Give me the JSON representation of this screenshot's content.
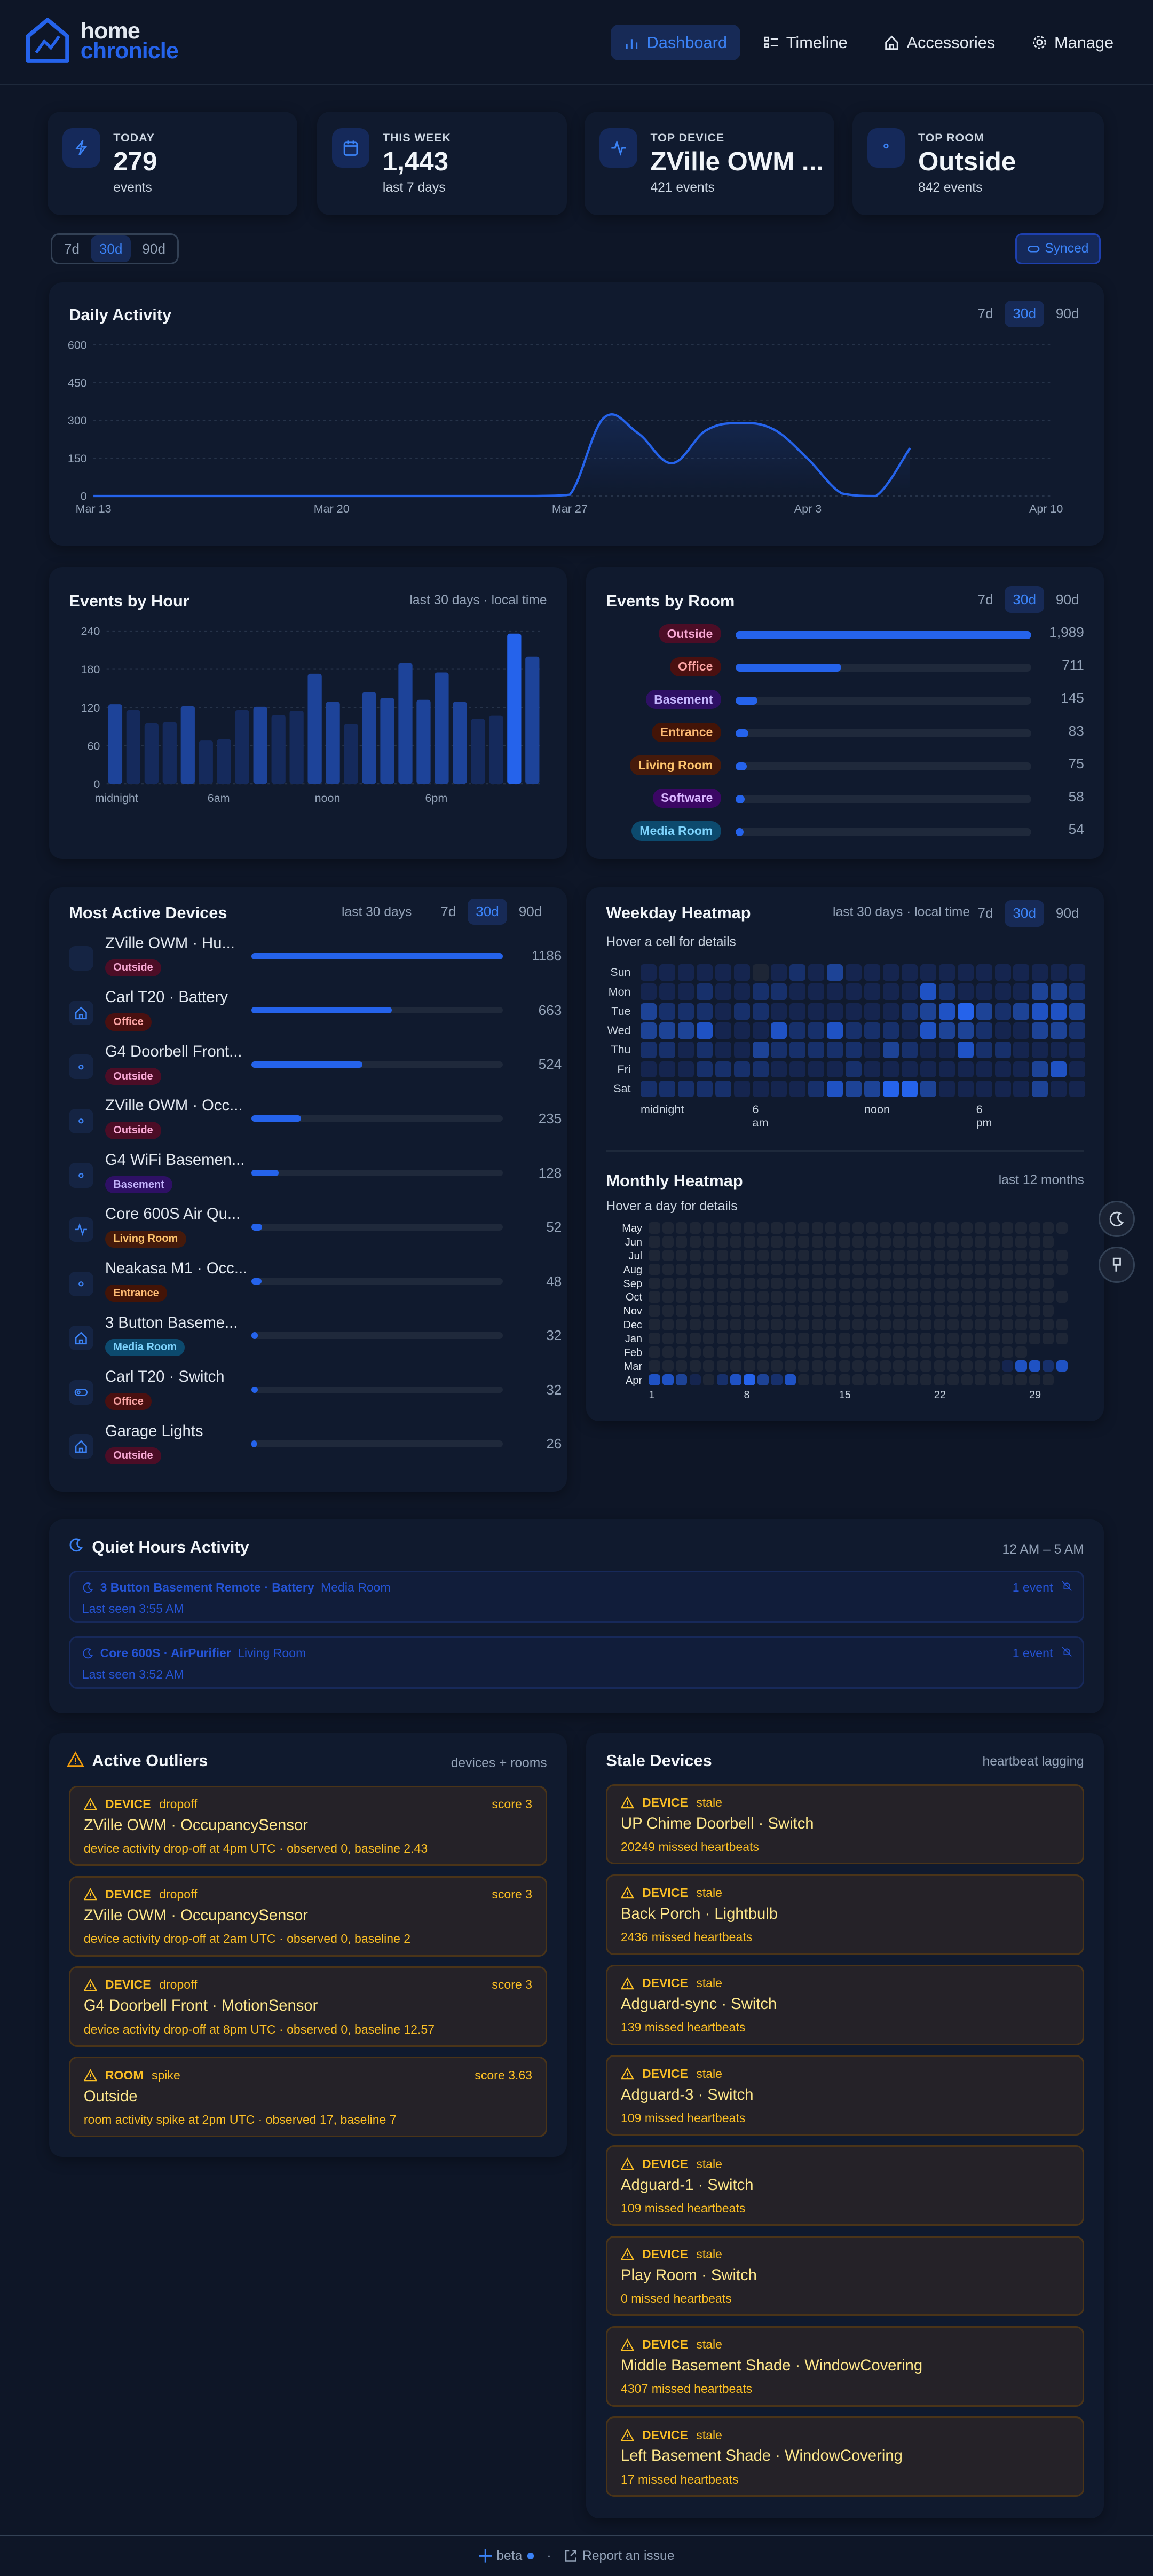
{
  "app": {
    "logo_line1": "home",
    "logo_line2": "chronicle"
  },
  "nav": [
    {
      "label": "Dashboard",
      "icon": "bar-chart-icon",
      "active": true
    },
    {
      "label": "Timeline",
      "icon": "list-icon",
      "active": false
    },
    {
      "label": "Accessories",
      "icon": "home-icon",
      "active": false
    },
    {
      "label": "Manage",
      "icon": "gear-icon",
      "active": false
    }
  ],
  "stats": [
    {
      "label": "TODAY",
      "value": "279",
      "sub": "events",
      "icon": "lightning-icon"
    },
    {
      "label": "THIS WEEK",
      "value": "1,443",
      "sub": "last 7 days",
      "icon": "calendar-icon"
    },
    {
      "label": "TOP DEVICE",
      "value": "ZVille OWM ...",
      "sub": "421 events",
      "icon": "activity-icon"
    },
    {
      "label": "TOP ROOM",
      "value": "Outside",
      "sub": "842 events",
      "icon": "location-pin-icon"
    }
  ],
  "range": {
    "options": [
      "7d",
      "30d",
      "90d"
    ],
    "selected": "30d"
  },
  "sync": {
    "label": "Synced"
  },
  "daily": {
    "title": "Daily Activity",
    "chart_data": {
      "type": "area",
      "x": [
        "Mar 13",
        "Mar 14",
        "Mar 15",
        "Mar 16",
        "Mar 17",
        "Mar 18",
        "Mar 19",
        "Mar 20",
        "Mar 21",
        "Mar 22",
        "Mar 23",
        "Mar 24",
        "Mar 25",
        "Mar 26",
        "Mar 27",
        "Mar 28",
        "Mar 29",
        "Mar 30",
        "Mar 31",
        "Apr 1",
        "Apr 2",
        "Apr 3",
        "Apr 4",
        "Apr 5",
        "Apr 6"
      ],
      "values": [
        0,
        0,
        0,
        0,
        0,
        0,
        0,
        0,
        0,
        0,
        0,
        0,
        0,
        0,
        5,
        310,
        250,
        130,
        260,
        290,
        264,
        147,
        10,
        0,
        190
      ],
      "yticks": [
        "0",
        "150",
        "300",
        "450",
        "600"
      ],
      "ylim": [
        0,
        600
      ],
      "xticks": [
        "Mar 13",
        "Mar 20",
        "Mar 27",
        "Apr 3",
        "Apr 10"
      ],
      "xlim": [
        "Mar 13",
        "Apr 10"
      ],
      "grid": true,
      "color": "#2563eb"
    }
  },
  "hour": {
    "title": "Events by Hour",
    "meta": "last 30 days · local time",
    "chart_data": {
      "type": "bar",
      "categories": [
        "0",
        "1",
        "2",
        "3",
        "4",
        "5",
        "6",
        "7",
        "8",
        "9",
        "10",
        "11",
        "12",
        "13",
        "14",
        "15",
        "16",
        "17",
        "18",
        "19",
        "20",
        "21",
        "22",
        "23"
      ],
      "values": [
        125,
        116,
        95,
        97,
        122,
        68,
        70,
        116,
        121,
        108,
        115,
        173,
        129,
        94,
        144,
        135,
        190,
        132,
        175,
        129,
        102,
        107,
        236,
        200
      ],
      "xticks": [
        "midnight",
        "6am",
        "noon",
        "6pm"
      ],
      "yticks": [
        "0",
        "60",
        "120",
        "180",
        "240"
      ],
      "ylim": [
        0,
        240
      ],
      "grid": true
    }
  },
  "rooms": {
    "title": "Events by Room",
    "items": [
      {
        "name": "Outside",
        "count": 1989,
        "count_label": "1,989",
        "bg": "#4c0d26",
        "fg": "#f9a8d4"
      },
      {
        "name": "Office",
        "count": 711,
        "count_label": "711",
        "bg": "#4a1010",
        "fg": "#fca5a5"
      },
      {
        "name": "Basement",
        "count": 145,
        "count_label": "145",
        "bg": "#2e1065",
        "fg": "#c4b5fd"
      },
      {
        "name": "Entrance",
        "count": 83,
        "count_label": "83",
        "bg": "#431407",
        "fg": "#fdba74"
      },
      {
        "name": "Living Room",
        "count": 75,
        "count_label": "75",
        "bg": "#451a0b",
        "fg": "#fcc36d"
      },
      {
        "name": "Software",
        "count": 58,
        "count_label": "58",
        "bg": "#3b0764",
        "fg": "#d8b4fe"
      },
      {
        "name": "Media Room",
        "count": 54,
        "count_label": "54",
        "bg": "#0c4a6e",
        "fg": "#7dd3fc"
      }
    ]
  },
  "devices": {
    "title": "Most Active Devices",
    "meta": "last 30 days",
    "items": [
      {
        "name": "ZVille OWM · Hu...",
        "room": "Outside",
        "count": 1186,
        "icon": "droplets-icon"
      },
      {
        "name": "Carl T20 · Battery",
        "room": "Office",
        "count": 663,
        "icon": "home-icon"
      },
      {
        "name": "G4 Doorbell Front...",
        "room": "Outside",
        "count": 524,
        "icon": "eye-icon"
      },
      {
        "name": "ZVille OWM · Occ...",
        "room": "Outside",
        "count": 235,
        "icon": "eye-icon"
      },
      {
        "name": "G4 WiFi Basemen...",
        "room": "Basement",
        "count": 128,
        "icon": "eye-icon"
      },
      {
        "name": "Core 600S Air Qu...",
        "room": "Living Room",
        "count": 52,
        "icon": "activity-icon"
      },
      {
        "name": "Neakasa M1 · Occ...",
        "room": "Entrance",
        "count": 48,
        "icon": "eye-icon"
      },
      {
        "name": "3 Button Baseme...",
        "room": "Media Room",
        "count": 32,
        "icon": "home-icon"
      },
      {
        "name": "Carl T20 · Switch",
        "room": "Office",
        "count": 32,
        "icon": "toggle-icon"
      },
      {
        "name": "Garage Lights",
        "room": "Outside",
        "count": 26,
        "icon": "home-icon"
      }
    ]
  },
  "weekday": {
    "title": "Weekday Heatmap",
    "meta": "last 30 days · local time",
    "hint": "Hover a cell for details",
    "chart_data": {
      "type": "heatmap",
      "rows": [
        "Sun",
        "Mon",
        "Tue",
        "Wed",
        "Thu",
        "Fri",
        "Sat"
      ],
      "xticks": [
        "midnight",
        "6 am",
        "noon",
        "6 pm"
      ],
      "levels": [
        [
          1,
          1,
          1,
          1,
          1,
          1,
          0,
          1,
          2,
          1,
          3,
          1,
          1,
          1,
          1,
          1,
          1,
          1,
          1,
          1,
          1,
          1,
          1,
          1
        ],
        [
          1,
          1,
          1,
          2,
          1,
          1,
          2,
          2,
          1,
          1,
          1,
          1,
          1,
          1,
          1,
          4,
          2,
          1,
          1,
          1,
          1,
          3,
          3,
          2
        ],
        [
          3,
          2,
          2,
          2,
          1,
          2,
          2,
          1,
          1,
          1,
          1,
          1,
          1,
          1,
          2,
          3,
          4,
          5,
          3,
          2,
          3,
          4,
          4,
          3
        ],
        [
          3,
          3,
          3,
          4,
          1,
          1,
          1,
          4,
          2,
          2,
          4,
          2,
          2,
          2,
          1,
          4,
          3,
          3,
          2,
          1,
          1,
          3,
          3,
          2
        ],
        [
          2,
          2,
          1,
          2,
          1,
          1,
          3,
          2,
          2,
          2,
          2,
          2,
          1,
          3,
          2,
          1,
          1,
          4,
          2,
          2,
          1,
          1,
          1,
          1
        ],
        [
          1,
          1,
          1,
          2,
          2,
          2,
          2,
          1,
          1,
          1,
          1,
          2,
          1,
          1,
          1,
          1,
          1,
          1,
          1,
          1,
          1,
          3,
          4,
          1
        ],
        [
          2,
          2,
          2,
          2,
          2,
          1,
          1,
          1,
          1,
          2,
          4,
          3,
          3,
          5,
          5,
          3,
          1,
          1,
          1,
          1,
          1,
          3,
          1,
          1
        ]
      ]
    }
  },
  "monthly": {
    "title": "Monthly Heatmap",
    "meta": "last 12 months",
    "hint": "Hover a day for details",
    "chart_data": {
      "type": "heatmap",
      "rows": [
        "May",
        "Jun",
        "Jul",
        "Aug",
        "Sep",
        "Oct",
        "Nov",
        "Dec",
        "Jan",
        "Feb",
        "Mar",
        "Apr"
      ],
      "days_in_month": [
        31,
        30,
        31,
        31,
        30,
        31,
        30,
        31,
        31,
        28,
        31,
        30
      ],
      "xticks": [
        "1",
        "8",
        "15",
        "22",
        "29"
      ],
      "active_levels": {
        "Mar": {
          "27": 1,
          "28": 4,
          "29": 4,
          "30": 2,
          "31": 4
        },
        "Apr": {
          "1": 4,
          "2": 4,
          "3": 3,
          "4": 1,
          "6": 2,
          "7": 4,
          "8": 5,
          "9": 3,
          "10": 2,
          "11": 4
        }
      }
    }
  },
  "quiet": {
    "title": "Quiet Hours Activity",
    "meta": "12 AM – 5 AM",
    "items": [
      {
        "device": "3 Button Basement Remote · Battery",
        "room": "Media Room",
        "last_seen": "Last seen 3:55 AM",
        "count": "1 event"
      },
      {
        "device": "Core 600S · AirPurifier",
        "room": "Living Room",
        "last_seen": "Last seen 3:52 AM",
        "count": "1 event"
      }
    ]
  },
  "outliers": {
    "title": "Active Outliers",
    "meta": "devices + rooms",
    "items": [
      {
        "kind": "DEVICE",
        "type": "dropoff",
        "score": "score 3",
        "name": "ZVille OWM · OccupancySensor",
        "desc": "device activity drop-off at 4pm UTC · observed 0, baseline 2.43"
      },
      {
        "kind": "DEVICE",
        "type": "dropoff",
        "score": "score 3",
        "name": "ZVille OWM · OccupancySensor",
        "desc": "device activity drop-off at 2am UTC · observed 0, baseline 2"
      },
      {
        "kind": "DEVICE",
        "type": "dropoff",
        "score": "score 3",
        "name": "G4 Doorbell Front · MotionSensor",
        "desc": "device activity drop-off at 8pm UTC · observed 0, baseline 12.57"
      },
      {
        "kind": "ROOM",
        "type": "spike",
        "score": "score 3.63",
        "name": "Outside",
        "desc": "room activity spike at 2pm UTC · observed 17, baseline 7"
      }
    ]
  },
  "stale": {
    "title": "Stale Devices",
    "meta": "heartbeat lagging",
    "items": [
      {
        "kind": "DEVICE",
        "type": "stale",
        "name": "UP Chime Doorbell · Switch",
        "desc": "20249 missed heartbeats"
      },
      {
        "kind": "DEVICE",
        "type": "stale",
        "name": "Back Porch · Lightbulb",
        "desc": "2436 missed heartbeats"
      },
      {
        "kind": "DEVICE",
        "type": "stale",
        "name": "Adguard-sync · Switch",
        "desc": "139 missed heartbeats"
      },
      {
        "kind": "DEVICE",
        "type": "stale",
        "name": "Adguard-3 · Switch",
        "desc": "109 missed heartbeats"
      },
      {
        "kind": "DEVICE",
        "type": "stale",
        "name": "Adguard-1 · Switch",
        "desc": "109 missed heartbeats"
      },
      {
        "kind": "DEVICE",
        "type": "stale",
        "name": "Play Room · Switch",
        "desc": "0 missed heartbeats"
      },
      {
        "kind": "DEVICE",
        "type": "stale",
        "name": "Middle Basement Shade · WindowCovering",
        "desc": "4307 missed heartbeats"
      },
      {
        "kind": "DEVICE",
        "type": "stale",
        "name": "Left Basement Shade · WindowCovering",
        "desc": "17 missed heartbeats"
      }
    ]
  },
  "footer": {
    "beta": "beta",
    "report": "Report an issue"
  },
  "colors": {
    "accent": "#2563eb",
    "background": "#0e1627",
    "warning": "#fbbf24"
  }
}
